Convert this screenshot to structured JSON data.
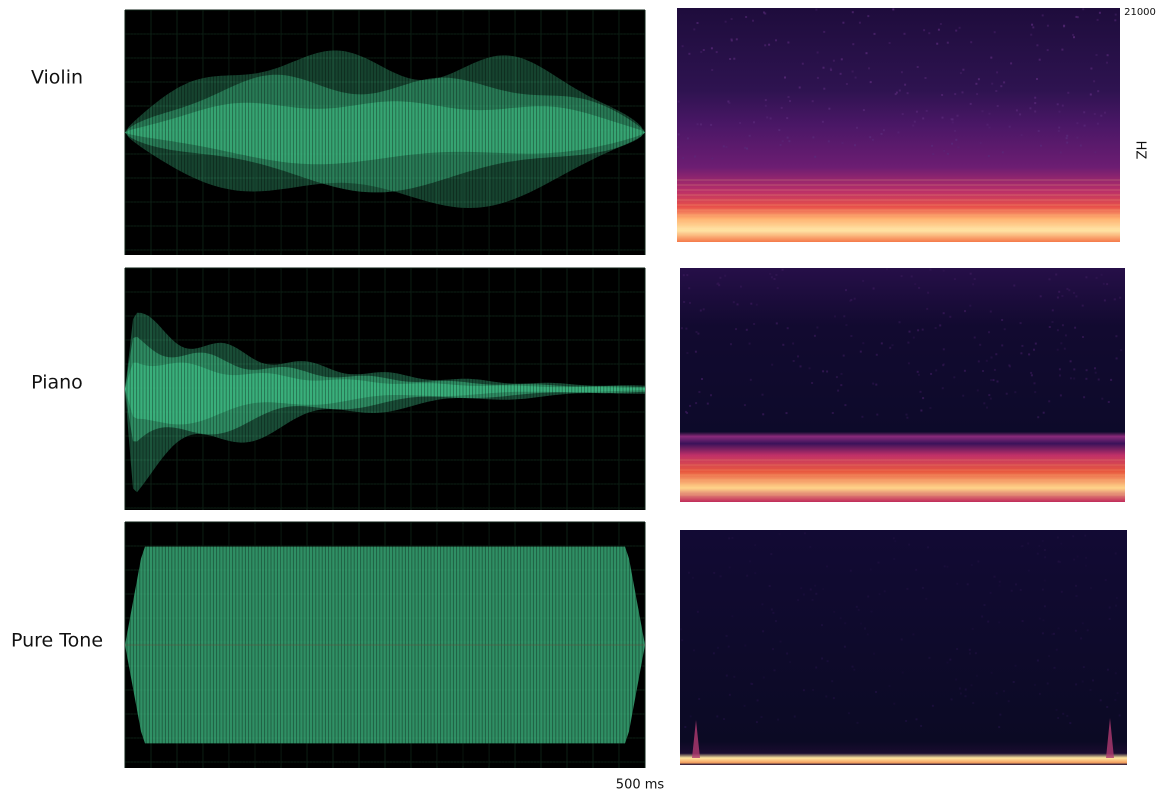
{
  "rows": [
    {
      "label": "Violin"
    },
    {
      "label": "Piano"
    },
    {
      "label": "Pure Tone"
    }
  ],
  "time_label": "500 ms",
  "freq_max_label": "21000",
  "freq_unit_label": "HZ"
}
